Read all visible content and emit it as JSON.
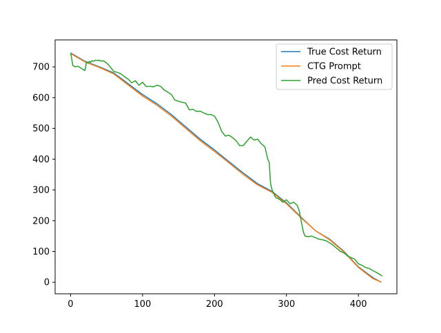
{
  "chart_data": {
    "type": "line",
    "title": "",
    "xlabel": "",
    "ylabel": "",
    "xlim": [
      -21.5,
      453.5
    ],
    "ylim": [
      -37.5,
      787.5
    ],
    "xticks": [
      0,
      100,
      200,
      300,
      400
    ],
    "yticks": [
      0,
      100,
      200,
      300,
      400,
      500,
      600,
      700
    ],
    "grid": false,
    "legend_position": "top-right",
    "series": [
      {
        "name": "True Cost Return",
        "color": "#1f77b4",
        "x": [
          0,
          20,
          40,
          60,
          80,
          100,
          120,
          140,
          160,
          180,
          200,
          220,
          240,
          260,
          280,
          300,
          320,
          340,
          360,
          380,
          400,
          420,
          432
        ],
        "y": [
          745,
          718,
          700,
          680,
          645,
          610,
          580,
          545,
          505,
          465,
          430,
          392,
          355,
          320,
          295,
          258,
          212,
          168,
          140,
          100,
          50,
          15,
          0
        ]
      },
      {
        "name": "CTG Prompt",
        "color": "#ff7f0e",
        "x": [
          0,
          20,
          40,
          60,
          80,
          100,
          120,
          140,
          160,
          180,
          200,
          220,
          240,
          260,
          280,
          300,
          320,
          340,
          360,
          380,
          400,
          420,
          432
        ],
        "y": [
          743,
          716,
          698,
          677,
          641,
          605,
          575,
          540,
          500,
          460,
          425,
          388,
          350,
          316,
          292,
          255,
          210,
          168,
          138,
          98,
          48,
          12,
          0
        ]
      },
      {
        "name": "Pred Cost Return",
        "color": "#2ca02c",
        "x": [
          0,
          1,
          3,
          6,
          10,
          15,
          20,
          22,
          24,
          26,
          28,
          30,
          32,
          35,
          38,
          40,
          42,
          45,
          50,
          55,
          60,
          65,
          70,
          75,
          80,
          85,
          90,
          95,
          100,
          105,
          110,
          115,
          120,
          125,
          130,
          135,
          140,
          145,
          150,
          155,
          160,
          165,
          170,
          175,
          180,
          185,
          190,
          195,
          200,
          205,
          210,
          215,
          220,
          225,
          230,
          235,
          240,
          245,
          250,
          255,
          260,
          265,
          270,
          272,
          274,
          276,
          278,
          280,
          282,
          285,
          290,
          295,
          300,
          305,
          310,
          315,
          318,
          320,
          322,
          324,
          326,
          330,
          335,
          340,
          345,
          350,
          355,
          360,
          365,
          370,
          375,
          380,
          385,
          390,
          395,
          400,
          405,
          410,
          415,
          420,
          425,
          430,
          433
        ],
        "y": [
          745,
          735,
          705,
          700,
          702,
          695,
          688,
          715,
          712,
          718,
          715,
          720,
          718,
          722,
          720,
          722,
          718,
          720,
          713,
          700,
          685,
          682,
          677,
          668,
          660,
          648,
          655,
          640,
          650,
          636,
          637,
          635,
          640,
          637,
          625,
          618,
          610,
          592,
          588,
          585,
          582,
          560,
          562,
          555,
          556,
          550,
          545,
          545,
          540,
          520,
          490,
          475,
          478,
          470,
          460,
          444,
          444,
          458,
          472,
          462,
          465,
          450,
          440,
          420,
          400,
          390,
          320,
          300,
          290,
          275,
          270,
          260,
          268,
          255,
          260,
          250,
          230,
          205,
          180,
          160,
          150,
          148,
          150,
          145,
          140,
          138,
          135,
          128,
          120,
          110,
          100,
          95,
          85,
          80,
          75,
          60,
          55,
          48,
          45,
          38,
          32,
          25,
          20
        ]
      }
    ]
  }
}
